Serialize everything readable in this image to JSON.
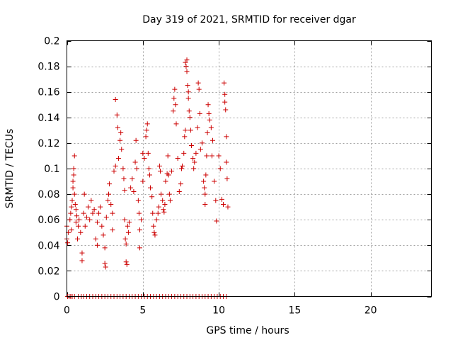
{
  "chart_data": {
    "type": "scatter",
    "title": "Day 319 of 2021, SRMTID for receiver dgar",
    "xlabel": "GPS time / hours",
    "ylabel": "SRMTID / TECUs",
    "xlim": [
      0,
      24
    ],
    "ylim": [
      0,
      0.2
    ],
    "x_ticks": [
      0,
      5,
      10,
      15,
      20
    ],
    "x_tick_labels": [
      "0",
      "5",
      "10",
      "15",
      "20"
    ],
    "y_ticks": [
      0,
      0.02,
      0.04,
      0.06,
      0.08,
      0.1,
      0.12,
      0.14,
      0.16,
      0.18,
      0.2
    ],
    "y_tick_labels": [
      "0",
      "0.02",
      "0.04",
      "0.06",
      "0.08",
      "0.1",
      "0.12",
      "0.14",
      "0.16",
      "0.18",
      "0.2"
    ],
    "grid": true,
    "marker": "plus",
    "color": "#cc0000",
    "series": [
      {
        "name": "SRMTID",
        "points": [
          [
            0.0,
            0.055
          ],
          [
            0.0,
            0.045
          ],
          [
            0.05,
            0.042
          ],
          [
            0.1,
            0.05
          ],
          [
            0.2,
            0.06
          ],
          [
            0.25,
            0.065
          ],
          [
            0.3,
            0.07
          ],
          [
            0.3,
            0.052
          ],
          [
            0.35,
            0.075
          ],
          [
            0.4,
            0.085
          ],
          [
            0.4,
            0.09
          ],
          [
            0.45,
            0.1
          ],
          [
            0.45,
            0.095
          ],
          [
            0.5,
            0.11
          ],
          [
            0.5,
            0.08
          ],
          [
            0.55,
            0.072
          ],
          [
            0.6,
            0.068
          ],
          [
            0.6,
            0.058
          ],
          [
            0.65,
            0.063
          ],
          [
            0.7,
            0.045
          ],
          [
            0.75,
            0.055
          ],
          [
            0.8,
            0.06
          ],
          [
            0.9,
            0.05
          ],
          [
            1.0,
            0.034
          ],
          [
            1.0,
            0.028
          ],
          [
            1.1,
            0.065
          ],
          [
            1.15,
            0.08
          ],
          [
            1.2,
            0.055
          ],
          [
            1.3,
            0.062
          ],
          [
            1.4,
            0.07
          ],
          [
            1.5,
            0.06
          ],
          [
            1.6,
            0.075
          ],
          [
            1.7,
            0.065
          ],
          [
            1.8,
            0.068
          ],
          [
            1.9,
            0.045
          ],
          [
            2.0,
            0.04
          ],
          [
            2.0,
            0.058
          ],
          [
            2.1,
            0.065
          ],
          [
            2.2,
            0.07
          ],
          [
            2.3,
            0.055
          ],
          [
            2.4,
            0.048
          ],
          [
            2.5,
            0.038
          ],
          [
            2.5,
            0.026
          ],
          [
            2.55,
            0.023
          ],
          [
            2.6,
            0.062
          ],
          [
            2.7,
            0.075
          ],
          [
            2.75,
            0.08
          ],
          [
            2.8,
            0.088
          ],
          [
            2.9,
            0.072
          ],
          [
            3.0,
            0.065
          ],
          [
            3.0,
            0.052
          ],
          [
            3.1,
            0.098
          ],
          [
            3.2,
            0.102
          ],
          [
            3.2,
            0.154
          ],
          [
            3.3,
            0.142
          ],
          [
            3.35,
            0.132
          ],
          [
            3.4,
            0.108
          ],
          [
            3.5,
            0.122
          ],
          [
            3.55,
            0.128
          ],
          [
            3.6,
            0.115
          ],
          [
            3.7,
            0.1
          ],
          [
            3.75,
            0.092
          ],
          [
            3.8,
            0.083
          ],
          [
            3.8,
            0.06
          ],
          [
            3.85,
            0.045
          ],
          [
            3.9,
            0.041
          ],
          [
            3.9,
            0.027
          ],
          [
            3.95,
            0.025
          ],
          [
            4.0,
            0.055
          ],
          [
            4.05,
            0.05
          ],
          [
            4.1,
            0.058
          ],
          [
            4.2,
            0.085
          ],
          [
            4.3,
            0.092
          ],
          [
            4.4,
            0.082
          ],
          [
            4.5,
            0.105
          ],
          [
            4.55,
            0.122
          ],
          [
            4.6,
            0.1
          ],
          [
            4.7,
            0.075
          ],
          [
            4.75,
            0.065
          ],
          [
            4.8,
            0.052
          ],
          [
            4.8,
            0.038
          ],
          [
            4.9,
            0.06
          ],
          [
            5.0,
            0.09
          ],
          [
            5.0,
            0.112
          ],
          [
            5.1,
            0.108
          ],
          [
            5.2,
            0.125
          ],
          [
            5.25,
            0.13
          ],
          [
            5.3,
            0.135
          ],
          [
            5.35,
            0.112
          ],
          [
            5.4,
            0.1
          ],
          [
            5.45,
            0.095
          ],
          [
            5.5,
            0.085
          ],
          [
            5.6,
            0.078
          ],
          [
            5.65,
            0.065
          ],
          [
            5.7,
            0.055
          ],
          [
            5.75,
            0.05
          ],
          [
            5.8,
            0.048
          ],
          [
            5.9,
            0.06
          ],
          [
            6.0,
            0.065
          ],
          [
            6.05,
            0.07
          ],
          [
            6.1,
            0.102
          ],
          [
            6.15,
            0.098
          ],
          [
            6.2,
            0.08
          ],
          [
            6.3,
            0.075
          ],
          [
            6.35,
            0.068
          ],
          [
            6.4,
            0.066
          ],
          [
            6.45,
            0.072
          ],
          [
            6.5,
            0.09
          ],
          [
            6.6,
            0.096
          ],
          [
            6.65,
            0.11
          ],
          [
            6.7,
            0.095
          ],
          [
            6.75,
            0.08
          ],
          [
            6.8,
            0.075
          ],
          [
            6.9,
            0.098
          ],
          [
            7.0,
            0.145
          ],
          [
            7.05,
            0.155
          ],
          [
            7.1,
            0.162
          ],
          [
            7.15,
            0.15
          ],
          [
            7.2,
            0.135
          ],
          [
            7.3,
            0.108
          ],
          [
            7.4,
            0.082
          ],
          [
            7.5,
            0.088
          ],
          [
            7.55,
            0.1
          ],
          [
            7.6,
            0.102
          ],
          [
            7.7,
            0.112
          ],
          [
            7.75,
            0.125
          ],
          [
            7.8,
            0.13
          ],
          [
            7.8,
            0.183
          ],
          [
            7.85,
            0.18
          ],
          [
            7.9,
            0.185
          ],
          [
            7.9,
            0.176
          ],
          [
            7.95,
            0.165
          ],
          [
            8.0,
            0.16
          ],
          [
            8.0,
            0.155
          ],
          [
            8.05,
            0.145
          ],
          [
            8.1,
            0.14
          ],
          [
            8.15,
            0.13
          ],
          [
            8.2,
            0.118
          ],
          [
            8.3,
            0.108
          ],
          [
            8.35,
            0.1
          ],
          [
            8.4,
            0.105
          ],
          [
            8.5,
            0.112
          ],
          [
            8.6,
            0.132
          ],
          [
            8.65,
            0.167
          ],
          [
            8.7,
            0.162
          ],
          [
            8.75,
            0.143
          ],
          [
            8.8,
            0.115
          ],
          [
            8.9,
            0.12
          ],
          [
            9.0,
            0.09
          ],
          [
            9.05,
            0.085
          ],
          [
            9.1,
            0.08
          ],
          [
            9.1,
            0.072
          ],
          [
            9.15,
            0.095
          ],
          [
            9.2,
            0.11
          ],
          [
            9.25,
            0.128
          ],
          [
            9.3,
            0.15
          ],
          [
            9.35,
            0.143
          ],
          [
            9.4,
            0.138
          ],
          [
            9.5,
            0.132
          ],
          [
            9.55,
            0.11
          ],
          [
            9.6,
            0.122
          ],
          [
            9.7,
            0.09
          ],
          [
            9.8,
            0.075
          ],
          [
            9.85,
            0.059
          ],
          [
            10.0,
            0.11
          ],
          [
            10.1,
            0.1
          ],
          [
            10.2,
            0.076
          ],
          [
            10.3,
            0.072
          ],
          [
            10.35,
            0.167
          ],
          [
            10.4,
            0.158
          ],
          [
            10.4,
            0.152
          ],
          [
            10.45,
            0.146
          ],
          [
            10.5,
            0.125
          ],
          [
            10.5,
            0.105
          ],
          [
            10.55,
            0.092
          ],
          [
            10.6,
            0.07
          ],
          [
            0.05,
            0.0
          ],
          [
            0.15,
            0.0
          ],
          [
            0.25,
            0.0
          ],
          [
            0.35,
            0.0
          ],
          [
            0.5,
            0.0
          ],
          [
            0.75,
            0.0
          ],
          [
            0.95,
            0.0
          ],
          [
            1.1,
            0.0
          ],
          [
            1.3,
            0.0
          ],
          [
            1.5,
            0.0
          ],
          [
            1.7,
            0.0
          ],
          [
            1.9,
            0.0
          ],
          [
            2.1,
            0.0
          ],
          [
            2.3,
            0.0
          ],
          [
            2.5,
            0.0
          ],
          [
            2.7,
            0.0
          ],
          [
            2.9,
            0.0
          ],
          [
            3.1,
            0.0
          ],
          [
            3.3,
            0.0
          ],
          [
            3.5,
            0.0
          ],
          [
            3.7,
            0.0
          ],
          [
            3.9,
            0.0
          ],
          [
            4.1,
            0.0
          ],
          [
            4.3,
            0.0
          ],
          [
            4.5,
            0.0
          ],
          [
            4.7,
            0.0
          ],
          [
            4.9,
            0.0
          ],
          [
            5.1,
            0.0
          ],
          [
            5.3,
            0.0
          ],
          [
            5.5,
            0.0
          ],
          [
            5.7,
            0.0
          ],
          [
            5.9,
            0.0
          ],
          [
            6.1,
            0.0
          ],
          [
            6.3,
            0.0
          ],
          [
            6.5,
            0.0
          ],
          [
            6.7,
            0.0
          ],
          [
            6.9,
            0.0
          ],
          [
            7.1,
            0.0
          ],
          [
            7.3,
            0.0
          ],
          [
            7.5,
            0.0
          ],
          [
            7.7,
            0.0
          ],
          [
            7.9,
            0.0
          ],
          [
            8.1,
            0.0
          ],
          [
            8.3,
            0.0
          ],
          [
            8.5,
            0.0
          ],
          [
            8.7,
            0.0
          ],
          [
            8.9,
            0.0
          ],
          [
            9.1,
            0.0
          ],
          [
            9.3,
            0.0
          ],
          [
            9.5,
            0.0
          ],
          [
            9.7,
            0.0
          ],
          [
            9.9,
            0.0
          ],
          [
            10.1,
            0.0
          ],
          [
            10.3,
            0.0
          ],
          [
            10.5,
            0.0
          ]
        ]
      }
    ]
  }
}
